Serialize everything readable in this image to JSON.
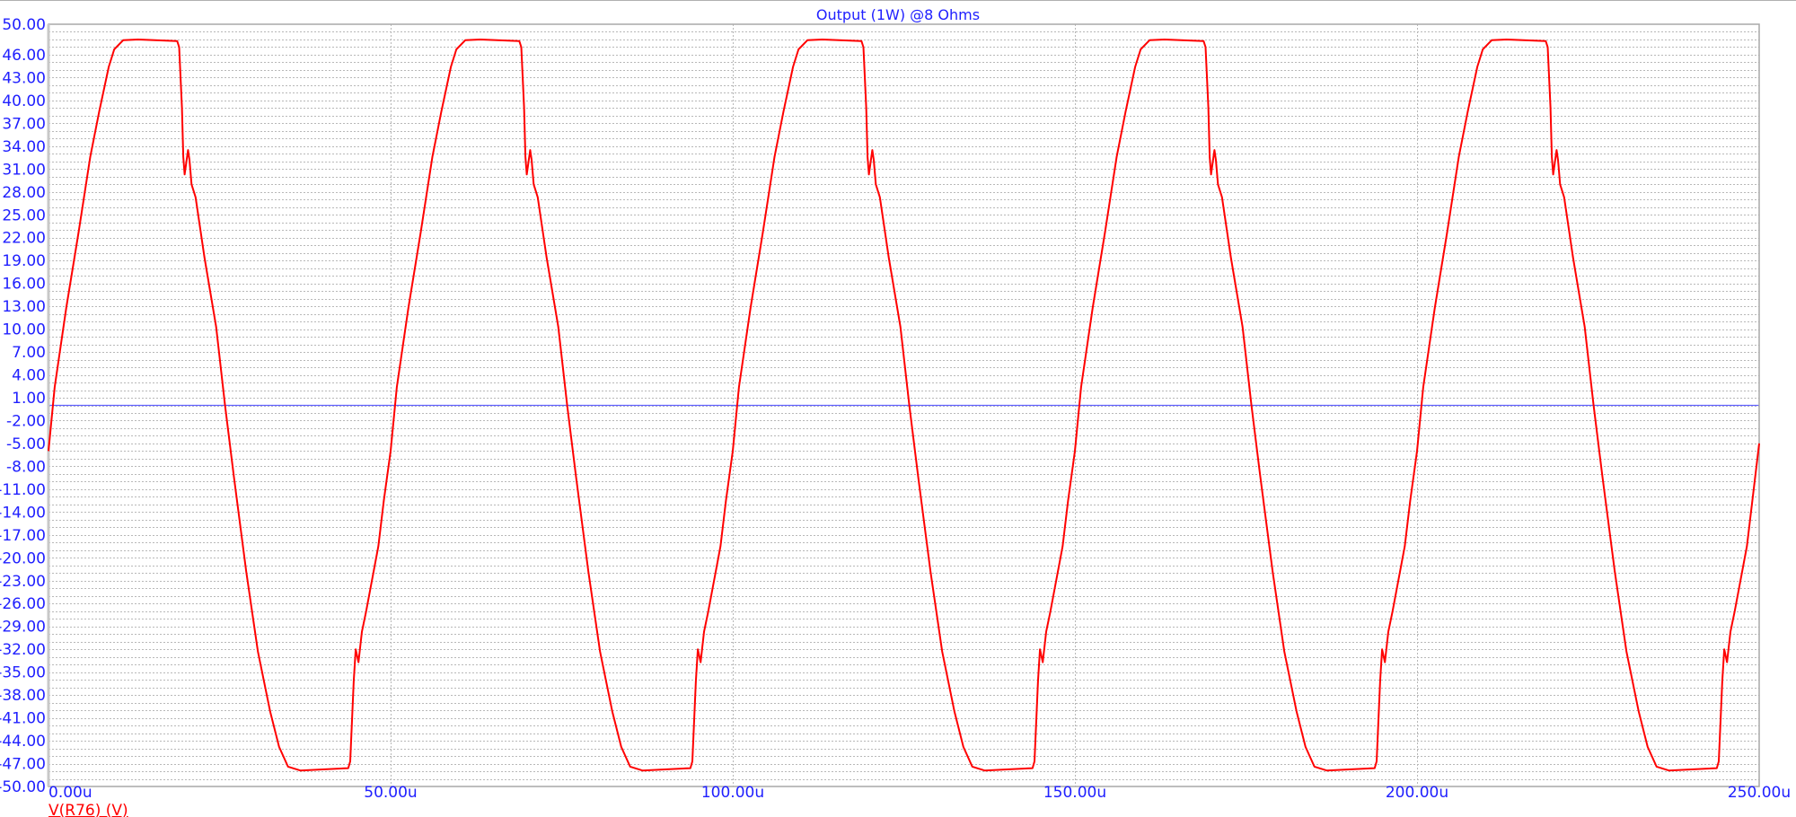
{
  "chart_data": {
    "type": "line",
    "title": "Output (1W) @8 Ohms",
    "xlabel": "",
    "ylabel": "",
    "xlim": [
      0,
      250
    ],
    "ylim": [
      -50,
      50
    ],
    "x_unit_suffix": "u",
    "grid": true,
    "x_ticks": [
      "0.00u",
      "50.00u",
      "100.00u",
      "150.00u",
      "200.00u",
      "250.00u"
    ],
    "x_tick_values": [
      0,
      50,
      100,
      150,
      200,
      250
    ],
    "y_ticks": [
      "50.00",
      "46.00",
      "43.00",
      "40.00",
      "37.00",
      "34.00",
      "31.00",
      "28.00",
      "25.00",
      "22.00",
      "19.00",
      "16.00",
      "13.00",
      "10.00",
      "7.00",
      "4.00",
      "1.00",
      "-2.00",
      "-5.00",
      "-8.00",
      "-11.00",
      "-14.00",
      "-17.00",
      "-20.00",
      "-23.00",
      "-26.00",
      "-29.00",
      "-32.00",
      "-35.00",
      "-38.00",
      "-41.00",
      "-44.00",
      "-47.00",
      "-50.00"
    ],
    "y_tick_values": [
      50,
      46,
      43,
      40,
      37,
      34,
      31,
      28,
      25,
      22,
      19,
      16,
      13,
      10,
      7,
      4,
      1,
      -2,
      -5,
      -8,
      -11,
      -14,
      -17,
      -20,
      -23,
      -26,
      -29,
      -32,
      -35,
      -38,
      -41,
      -44,
      -47,
      -50
    ],
    "reference_line_y": 0,
    "legend_placement": "bottom-left",
    "colors": {
      "series": "#ff0000",
      "text": "#2020ff",
      "zero_line": "#6060ff",
      "grid": "#b8b8b8"
    },
    "series": [
      {
        "name": "V(R76) (V)",
        "x": [
          0,
          0.9,
          2.6,
          4.4,
          6.1,
          7.4,
          8.8,
          9.6,
          10.9,
          13.1,
          18.8,
          19.1,
          19.5,
          19.7,
          19.9,
          20.4,
          20.6,
          20.9,
          21.5,
          22.8,
          24.5,
          25.8,
          27.1,
          28.9,
          30.6,
          32.4,
          33.7,
          35,
          36.8,
          43.8,
          44.1,
          44.6,
          44.9,
          45.3,
          45.8,
          46.4,
          48.2,
          49,
          50,
          50.9,
          52.6,
          54.4,
          56.1,
          57.4,
          58.8,
          59.6,
          60.9,
          63.1,
          68.8,
          69.1,
          69.5,
          69.7,
          69.9,
          70.4,
          70.6,
          70.9,
          71.5,
          72.8,
          74.5,
          75.8,
          77.1,
          78.9,
          80.6,
          82.4,
          83.7,
          85,
          86.8,
          93.8,
          94.1,
          94.6,
          94.9,
          95.3,
          95.8,
          96.4,
          98.2,
          99,
          100,
          100.9,
          102.6,
          104.4,
          106.1,
          107.4,
          108.8,
          109.6,
          110.9,
          113.1,
          118.8,
          119.1,
          119.5,
          119.7,
          119.9,
          120.4,
          120.6,
          120.9,
          121.5,
          122.8,
          124.5,
          125.8,
          127.1,
          128.9,
          130.6,
          132.4,
          133.7,
          135,
          136.8,
          143.8,
          144.1,
          144.6,
          144.9,
          145.3,
          145.8,
          146.4,
          148.2,
          149,
          150,
          150.9,
          152.6,
          154.4,
          156.1,
          157.4,
          158.8,
          159.6,
          160.9,
          163.1,
          168.8,
          169.1,
          169.5,
          169.7,
          169.9,
          170.4,
          170.6,
          170.9,
          171.5,
          172.8,
          174.5,
          175.8,
          177.1,
          178.9,
          180.6,
          182.4,
          183.7,
          185,
          186.8,
          193.8,
          194.1,
          194.6,
          194.9,
          195.3,
          195.8,
          196.4,
          198.2,
          199,
          200,
          200.9,
          202.6,
          204.4,
          206.1,
          207.4,
          208.8,
          209.6,
          210.9,
          213.1,
          218.8,
          219.1,
          219.5,
          219.7,
          219.9,
          220.4,
          220.6,
          220.9,
          221.5,
          222.8,
          224.5,
          225.8,
          227.1,
          228.9,
          230.6,
          232.4,
          233.7,
          235,
          236.8,
          243.8,
          244.1,
          244.6,
          244.9,
          245.3,
          245.8,
          246.4,
          248.2,
          249,
          250
        ],
        "y": [
          -6,
          2.4,
          12.8,
          22.7,
          32.6,
          38.5,
          44.4,
          46.7,
          47.9,
          48,
          47.8,
          47,
          39.1,
          32.6,
          30.3,
          33.5,
          32.2,
          29,
          27.3,
          19.4,
          10.3,
          0,
          -9.4,
          -21.8,
          -32.3,
          -40.2,
          -44.8,
          -47.4,
          -47.9,
          -47.6,
          -46.7,
          -36.2,
          -32,
          -33.7,
          -29.7,
          -27.1,
          -18.5,
          -12.5,
          -6,
          2.4,
          12.8,
          22.7,
          32.6,
          38.5,
          44.4,
          46.7,
          47.9,
          48,
          47.8,
          47,
          39.1,
          32.6,
          30.3,
          33.5,
          32.2,
          29,
          27.3,
          19.4,
          10.3,
          0,
          -9.4,
          -21.8,
          -32.3,
          -40.2,
          -44.8,
          -47.4,
          -47.9,
          -47.6,
          -46.7,
          -36.2,
          -32,
          -33.7,
          -29.7,
          -27.1,
          -18.5,
          -12.5,
          -6,
          2.4,
          12.8,
          22.7,
          32.6,
          38.5,
          44.4,
          46.7,
          47.9,
          48,
          47.8,
          47,
          39.1,
          32.6,
          30.3,
          33.5,
          32.2,
          29,
          27.3,
          19.4,
          10.3,
          0,
          -9.4,
          -21.8,
          -32.3,
          -40.2,
          -44.8,
          -47.4,
          -47.9,
          -47.6,
          -46.7,
          -36.2,
          -32,
          -33.7,
          -29.7,
          -27.1,
          -18.5,
          -12.5,
          -6,
          2.4,
          12.8,
          22.7,
          32.6,
          38.5,
          44.4,
          46.7,
          47.9,
          48,
          47.8,
          47,
          39.1,
          32.6,
          30.3,
          33.5,
          32.2,
          29,
          27.3,
          19.4,
          10.3,
          0,
          -9.4,
          -21.8,
          -32.3,
          -40.2,
          -44.8,
          -47.4,
          -47.9,
          -47.6,
          -46.7,
          -36.2,
          -32,
          -33.7,
          -29.7,
          -27.1,
          -18.5,
          -12.5,
          -6,
          2.4,
          12.8,
          22.7,
          32.6,
          38.5,
          44.4,
          46.7,
          47.9,
          48,
          47.8,
          47,
          39.1,
          32.6,
          30.3,
          33.5,
          32.2,
          29,
          27.3,
          19.4,
          10.3,
          0,
          -9.4,
          -21.8,
          -32.3,
          -40.2,
          -44.8,
          -47.4,
          -47.9,
          -47.6,
          -46.7,
          -36.2,
          -32,
          -33.7,
          -29.7,
          -27.1,
          -18.5,
          -12.5,
          -5
        ]
      }
    ]
  }
}
